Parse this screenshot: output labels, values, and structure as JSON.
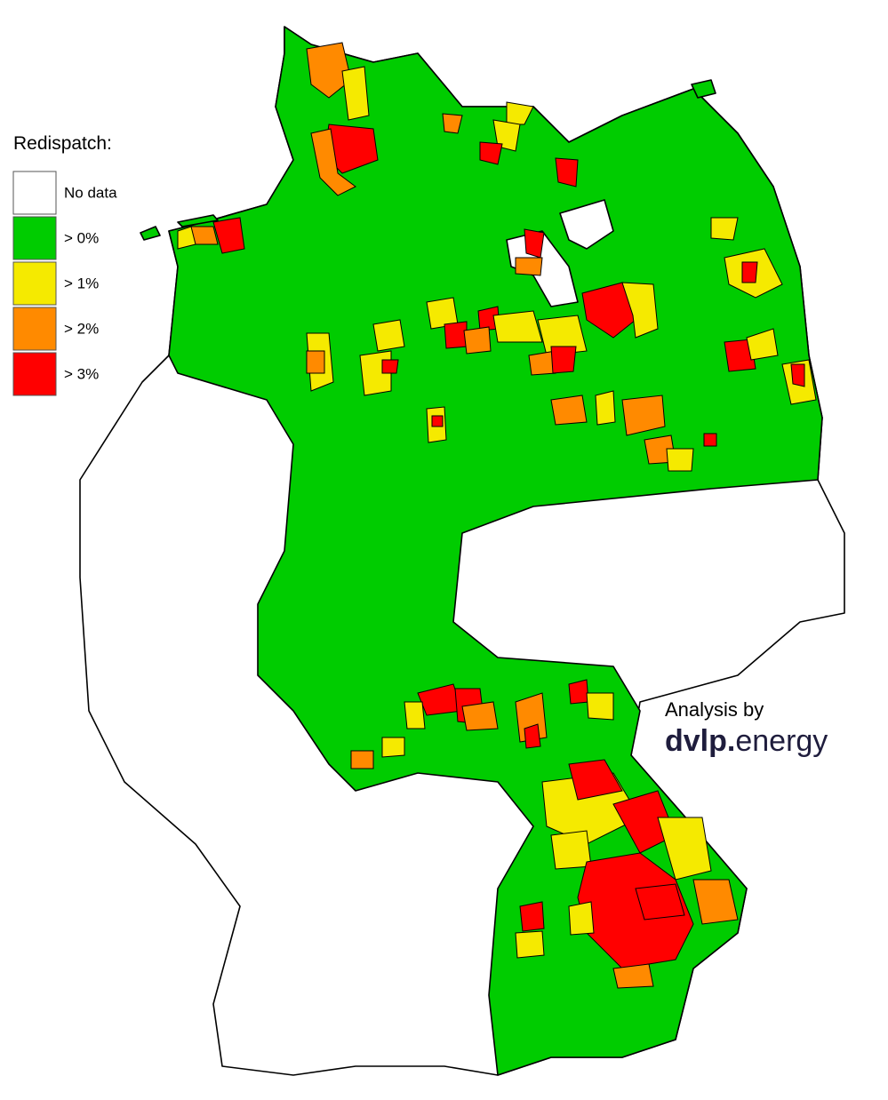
{
  "legend": {
    "title": "Redispatch:",
    "items": [
      {
        "label": "No data",
        "color": "#ffffff"
      },
      {
        "label": "> 0%",
        "color": "#00cc00"
      },
      {
        "label": "> 1%",
        "color": "#f5ea00"
      },
      {
        "label": "> 2%",
        "color": "#ff8a00"
      },
      {
        "label": "> 3%",
        "color": "#ff0000"
      }
    ]
  },
  "credit": {
    "text": "Analysis by",
    "brand": "dvlp.",
    "suffix": "energy"
  }
}
